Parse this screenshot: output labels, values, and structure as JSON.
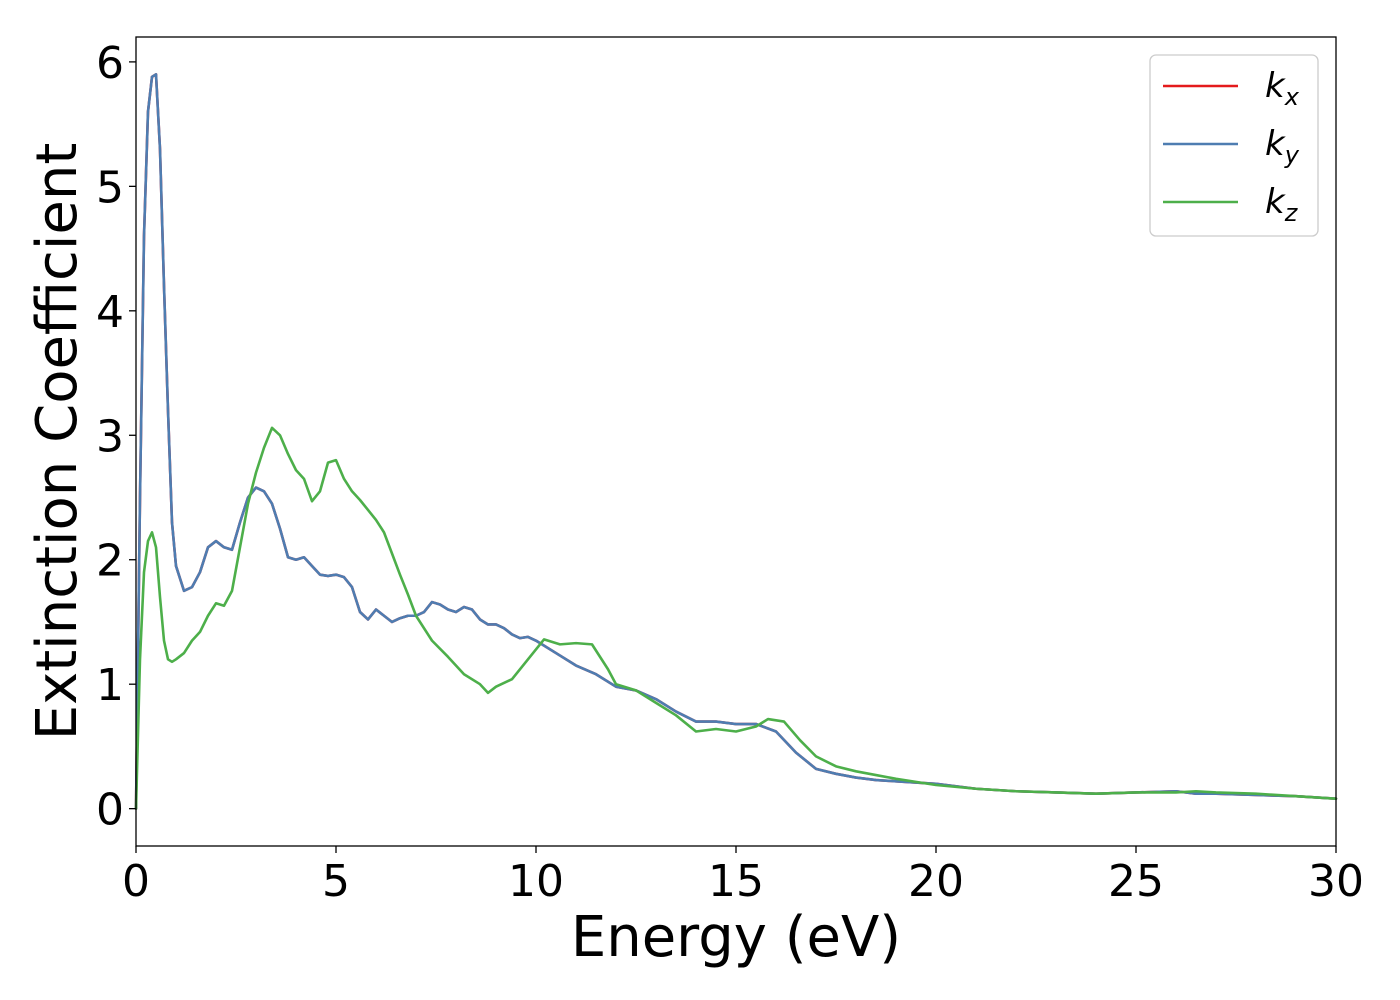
{
  "chart_data": {
    "type": "line",
    "xlabel": "Energy (eV)",
    "ylabel": "Extinction Coefficient",
    "xlim": [
      0,
      30
    ],
    "ylim": [
      -0.3,
      6.2
    ],
    "xticks": [
      "0",
      "5",
      "10",
      "15",
      "20",
      "25",
      "30"
    ],
    "yticks": [
      "0",
      "1",
      "2",
      "3",
      "4",
      "5",
      "6"
    ],
    "grid": false,
    "legend_position": "top-right",
    "series": [
      {
        "name": "k_x",
        "label_base": "k",
        "label_sub": "x",
        "color": "#e41a1c",
        "x": [
          0,
          0.1,
          0.2,
          0.3,
          0.4,
          0.5,
          0.6,
          0.7,
          0.8,
          0.9,
          1.0,
          1.2,
          1.4,
          1.6,
          1.8,
          2.0,
          2.2,
          2.4,
          2.6,
          2.8,
          3.0,
          3.2,
          3.4,
          3.6,
          3.8,
          4.0,
          4.2,
          4.4,
          4.6,
          4.8,
          5.0,
          5.2,
          5.4,
          5.6,
          5.8,
          6.0,
          6.2,
          6.4,
          6.6,
          6.8,
          7.0,
          7.2,
          7.4,
          7.6,
          7.8,
          8.0,
          8.2,
          8.4,
          8.6,
          8.8,
          9.0,
          9.2,
          9.4,
          9.6,
          9.8,
          10.0,
          10.5,
          11.0,
          11.5,
          12.0,
          12.5,
          13.0,
          13.5,
          14.0,
          14.5,
          15.0,
          15.5,
          16.0,
          16.5,
          17.0,
          17.5,
          18.0,
          18.5,
          19.0,
          20.0,
          21.0,
          22.0,
          23.0,
          24.0,
          25.0,
          26.0,
          26.5,
          27.0,
          28.0,
          29.0,
          30.0
        ],
        "values": [
          0,
          2.5,
          4.6,
          5.6,
          5.88,
          5.9,
          5.3,
          4.2,
          3.2,
          2.3,
          1.95,
          1.75,
          1.78,
          1.9,
          2.1,
          2.15,
          2.1,
          2.08,
          2.3,
          2.5,
          2.58,
          2.55,
          2.45,
          2.25,
          2.02,
          2.0,
          2.02,
          1.95,
          1.88,
          1.87,
          1.88,
          1.86,
          1.78,
          1.58,
          1.52,
          1.6,
          1.55,
          1.5,
          1.53,
          1.55,
          1.55,
          1.58,
          1.66,
          1.64,
          1.6,
          1.58,
          1.62,
          1.6,
          1.52,
          1.48,
          1.48,
          1.45,
          1.4,
          1.37,
          1.38,
          1.35,
          1.25,
          1.15,
          1.08,
          0.98,
          0.95,
          0.88,
          0.78,
          0.7,
          0.7,
          0.68,
          0.68,
          0.62,
          0.45,
          0.32,
          0.28,
          0.25,
          0.23,
          0.22,
          0.2,
          0.16,
          0.14,
          0.13,
          0.12,
          0.13,
          0.14,
          0.12,
          0.12,
          0.11,
          0.1,
          0.08
        ]
      },
      {
        "name": "k_y",
        "label_base": "k",
        "label_sub": "y",
        "color": "#4e7db1",
        "x": [
          0,
          0.1,
          0.2,
          0.3,
          0.4,
          0.5,
          0.6,
          0.7,
          0.8,
          0.9,
          1.0,
          1.2,
          1.4,
          1.6,
          1.8,
          2.0,
          2.2,
          2.4,
          2.6,
          2.8,
          3.0,
          3.2,
          3.4,
          3.6,
          3.8,
          4.0,
          4.2,
          4.4,
          4.6,
          4.8,
          5.0,
          5.2,
          5.4,
          5.6,
          5.8,
          6.0,
          6.2,
          6.4,
          6.6,
          6.8,
          7.0,
          7.2,
          7.4,
          7.6,
          7.8,
          8.0,
          8.2,
          8.4,
          8.6,
          8.8,
          9.0,
          9.2,
          9.4,
          9.6,
          9.8,
          10.0,
          10.5,
          11.0,
          11.5,
          12.0,
          12.5,
          13.0,
          13.5,
          14.0,
          14.5,
          15.0,
          15.5,
          16.0,
          16.5,
          17.0,
          17.5,
          18.0,
          18.5,
          19.0,
          20.0,
          21.0,
          22.0,
          23.0,
          24.0,
          25.0,
          26.0,
          26.5,
          27.0,
          28.0,
          29.0,
          30.0
        ],
        "values": [
          0,
          2.5,
          4.6,
          5.6,
          5.88,
          5.9,
          5.3,
          4.2,
          3.2,
          2.3,
          1.95,
          1.75,
          1.78,
          1.9,
          2.1,
          2.15,
          2.1,
          2.08,
          2.3,
          2.5,
          2.58,
          2.55,
          2.45,
          2.25,
          2.02,
          2.0,
          2.02,
          1.95,
          1.88,
          1.87,
          1.88,
          1.86,
          1.78,
          1.58,
          1.52,
          1.6,
          1.55,
          1.5,
          1.53,
          1.55,
          1.55,
          1.58,
          1.66,
          1.64,
          1.6,
          1.58,
          1.62,
          1.6,
          1.52,
          1.48,
          1.48,
          1.45,
          1.4,
          1.37,
          1.38,
          1.35,
          1.25,
          1.15,
          1.08,
          0.98,
          0.95,
          0.88,
          0.78,
          0.7,
          0.7,
          0.68,
          0.68,
          0.62,
          0.45,
          0.32,
          0.28,
          0.25,
          0.23,
          0.22,
          0.2,
          0.16,
          0.14,
          0.13,
          0.12,
          0.13,
          0.14,
          0.12,
          0.12,
          0.11,
          0.1,
          0.08
        ]
      },
      {
        "name": "k_z",
        "label_base": "k",
        "label_sub": "z",
        "color": "#4daf4a",
        "x": [
          0,
          0.1,
          0.2,
          0.3,
          0.4,
          0.5,
          0.6,
          0.7,
          0.8,
          0.9,
          1.0,
          1.2,
          1.4,
          1.6,
          1.8,
          2.0,
          2.2,
          2.4,
          2.6,
          2.8,
          3.0,
          3.2,
          3.4,
          3.6,
          3.8,
          4.0,
          4.2,
          4.4,
          4.6,
          4.8,
          5.0,
          5.2,
          5.4,
          5.6,
          5.8,
          6.0,
          6.2,
          6.4,
          6.6,
          6.8,
          7.0,
          7.4,
          7.8,
          8.2,
          8.6,
          8.8,
          9.0,
          9.4,
          9.8,
          10.2,
          10.6,
          11.0,
          11.4,
          11.8,
          12.0,
          12.5,
          13.0,
          13.5,
          14.0,
          14.5,
          15.0,
          15.5,
          15.8,
          16.2,
          16.6,
          17.0,
          17.5,
          18.0,
          18.5,
          19.0,
          20.0,
          21.0,
          22.0,
          23.0,
          24.0,
          25.0,
          26.0,
          26.5,
          27.0,
          28.0,
          29.0,
          30.0
        ],
        "values": [
          0,
          1.2,
          1.9,
          2.15,
          2.22,
          2.1,
          1.7,
          1.35,
          1.2,
          1.18,
          1.2,
          1.25,
          1.35,
          1.42,
          1.55,
          1.65,
          1.63,
          1.75,
          2.1,
          2.45,
          2.7,
          2.9,
          3.06,
          3.0,
          2.85,
          2.72,
          2.65,
          2.47,
          2.55,
          2.78,
          2.8,
          2.65,
          2.55,
          2.48,
          2.4,
          2.32,
          2.22,
          2.05,
          1.88,
          1.72,
          1.55,
          1.35,
          1.22,
          1.08,
          1.0,
          0.93,
          0.98,
          1.04,
          1.2,
          1.36,
          1.32,
          1.33,
          1.32,
          1.12,
          1.0,
          0.95,
          0.85,
          0.75,
          0.62,
          0.64,
          0.62,
          0.66,
          0.72,
          0.7,
          0.55,
          0.42,
          0.34,
          0.3,
          0.27,
          0.24,
          0.19,
          0.16,
          0.14,
          0.13,
          0.12,
          0.13,
          0.13,
          0.14,
          0.13,
          0.12,
          0.1,
          0.08
        ]
      }
    ]
  }
}
